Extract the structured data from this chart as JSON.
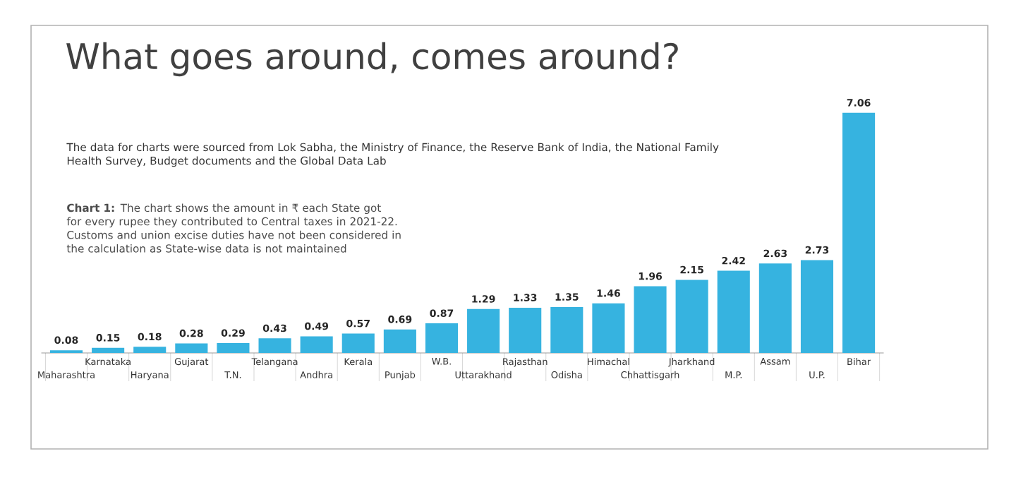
{
  "chart_data": {
    "type": "bar",
    "title": "What goes around, comes around?",
    "subtitle": "The data for charts were sourced from Lok Sabha, the Ministry of Finance, the Reserve Bank of India, the National Family Health Survey, Budget documents and the Global Data Lab",
    "annotations": [
      "**Chart 1:** The chart shows the amount in ₹ each State got for every rupee they contributed to Central taxes in 2021-22. Customs and union excise duties have not been considered in the calculation as State-wise data is not maintained"
    ],
    "categories": [
      "Maharashtra",
      "Karnataka",
      "Haryana",
      "Gujarat",
      "T.N.",
      "Telangana",
      "Andhra",
      "Kerala",
      "Punjab",
      "W.B.",
      "Uttarakhand",
      "Rajasthan",
      "Odisha",
      "Himachal",
      "Chhattisgarh",
      "Jharkhand",
      "M.P.",
      "Assam",
      "U.P.",
      "Bihar"
    ],
    "values": [
      0.08,
      0.15,
      0.18,
      0.28,
      0.29,
      0.43,
      0.49,
      0.57,
      0.69,
      0.87,
      1.29,
      1.33,
      1.35,
      1.46,
      1.96,
      2.15,
      2.42,
      2.63,
      2.73,
      7.06
    ],
    "color": "#36b3e0",
    "data_labels": true
  }
}
